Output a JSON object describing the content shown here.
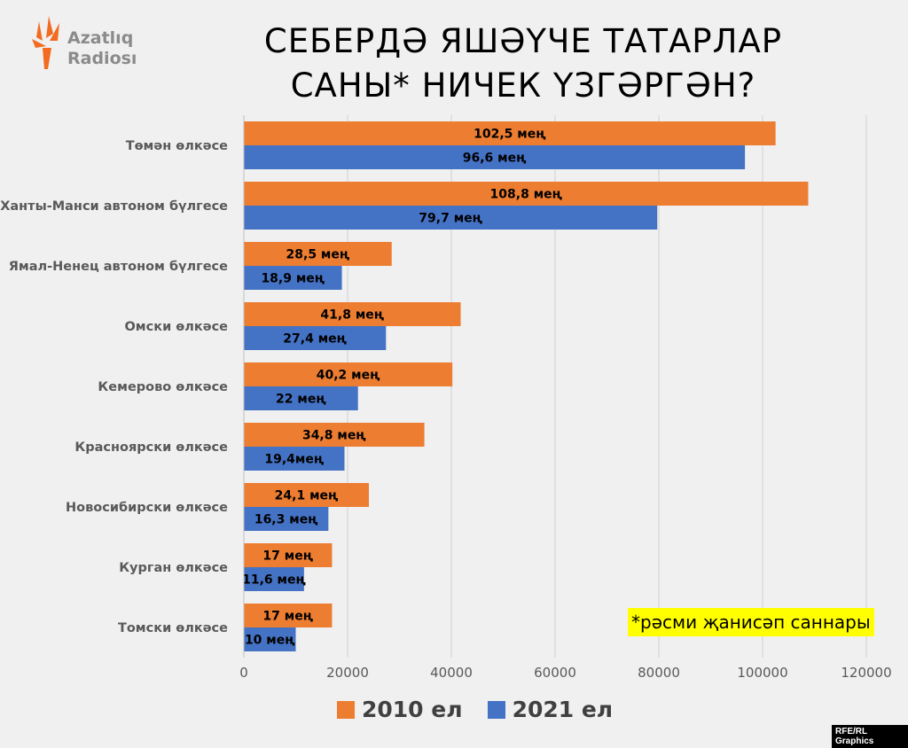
{
  "logo": {
    "line1": "Azatlıq",
    "line2": "Radiosı"
  },
  "title_line1": "СЕБЕРДӘ ЯШӘҮЧЕ ТАТАРЛАР",
  "title_line2": "САНЫ* НИЧЕК ҮЗГӘРГӘН?",
  "note": "*рәсми җанисәп саннары",
  "credit": "RFE/RL Graphics",
  "colors": {
    "s2010": "#ed7d31",
    "s2021": "#4472c4",
    "grid": "#d0d0d0"
  },
  "chart_data": {
    "type": "bar",
    "orientation": "horizontal",
    "categories": [
      "Төмән өлкәсе",
      "Ханты-Манси автоном бүлгесе",
      "Ямал-Ненец автоном бүлгесе",
      "Омски өлкәсе",
      "Кемерово өлкәсе",
      "Красноярски өлкәсе",
      "Новосибирски өлкәсе",
      "Курган өлкәсе",
      "Томски өлкәсе"
    ],
    "series": [
      {
        "name": "2010 ел",
        "values": [
          102500,
          108800,
          28500,
          41800,
          40200,
          34800,
          24100,
          17000,
          17000
        ],
        "labels": [
          "102,5 мең",
          "108,8 мең",
          "28,5 мең",
          "41,8 мең",
          "40,2 мең",
          "34,8 мең",
          "24,1 мең",
          "17 мең",
          "17 мең"
        ]
      },
      {
        "name": "2021 ел",
        "values": [
          96600,
          79700,
          18900,
          27400,
          22000,
          19400,
          16300,
          11600,
          10000
        ],
        "labels": [
          "96,6 мең",
          "79,7 мең",
          "18,9 мең",
          "27,4 мең",
          "22 мең",
          "19,4мең",
          "16,3 мең",
          "11,6 мең",
          "10 мең"
        ]
      }
    ],
    "xlim": [
      0,
      120000
    ],
    "xticks": [
      "0",
      "20000",
      "40000",
      "60000",
      "80000",
      "100000",
      "120000"
    ],
    "grid": true,
    "legend": "bottom"
  }
}
